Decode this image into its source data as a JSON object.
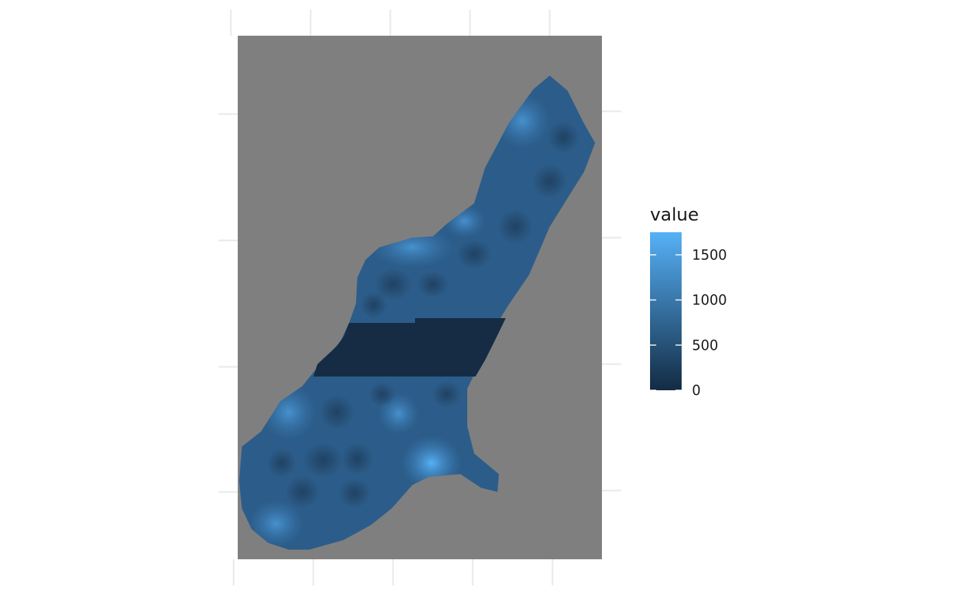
{
  "map": {
    "background_color": "#7f7f7f",
    "region_description": "raster field clipped to an elongated diagonal region",
    "band_color": "#152c44"
  },
  "legend": {
    "title": "value",
    "ticks": [
      {
        "value": 1500,
        "label": "1500"
      },
      {
        "value": 1000,
        "label": "1000"
      },
      {
        "value": 500,
        "label": "500"
      },
      {
        "value": 0,
        "label": "0"
      }
    ],
    "range": [
      0,
      1750
    ],
    "color_low": "#132b43",
    "color_high": "#56b1f7"
  }
}
